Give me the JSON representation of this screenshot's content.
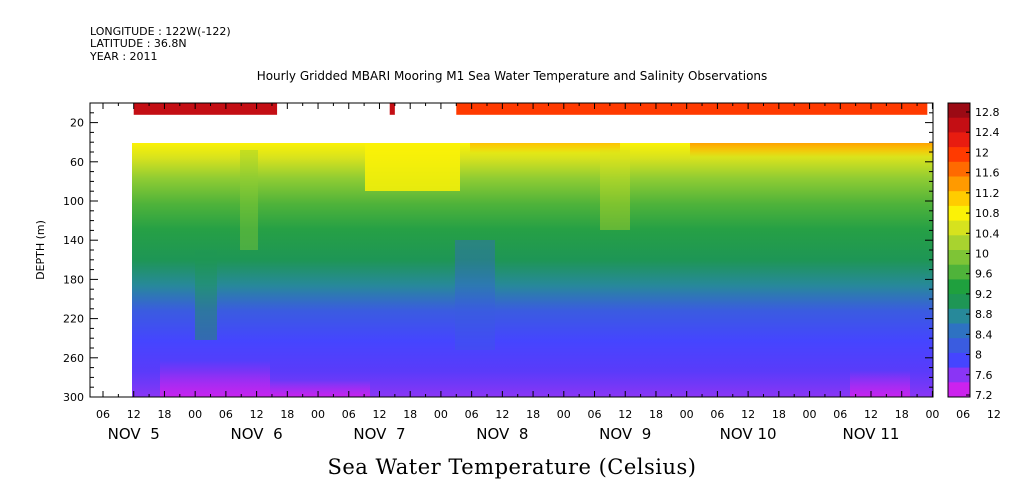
{
  "header": {
    "longitude": "LONGITUDE : 122W(-122)",
    "latitude": "LATITUDE : 36.8N",
    "year": "YEAR : 2011"
  },
  "chart_data": {
    "type": "heatmap",
    "title": "Hourly Gridded MBARI Mooring M1 Sea Water Temperature and Salinity Observations",
    "xlabel": "",
    "ylabel": "DEPTH (m)",
    "bottom_label": "Sea Water Temperature (Celsius)",
    "x_hour_ticks": [
      "06",
      "12",
      "18",
      "00",
      "06",
      "12",
      "18",
      "00",
      "06",
      "12",
      "18",
      "00",
      "06",
      "12",
      "18",
      "00",
      "06",
      "12",
      "18",
      "00",
      "06",
      "12",
      "18",
      "00",
      "06",
      "12",
      "18",
      "00",
      "06",
      "12",
      "18"
    ],
    "x_day_labels": [
      "NOV  5",
      "NOV  6",
      "NOV  7",
      "NOV  8",
      "NOV  9",
      "NOV 10",
      "NOV 11"
    ],
    "y_ticks": [
      "20",
      "60",
      "100",
      "140",
      "180",
      "220",
      "260",
      "300"
    ],
    "ylim": [
      300,
      0
    ],
    "colorbar": {
      "labels": [
        "7.2",
        "7.6",
        "8",
        "8.4",
        "8.8",
        "9.2",
        "9.6",
        "10",
        "10.4",
        "10.8",
        "11.2",
        "11.6",
        "12",
        "12.4",
        "12.8"
      ],
      "colors": [
        "#cc22ee",
        "#8a35f5",
        "#4545ff",
        "#3a5ce0",
        "#2e72c2",
        "#27899a",
        "#1e9655",
        "#1fa03e",
        "#4fb33a",
        "#7ec436",
        "#a8d32f",
        "#d6e21e",
        "#fbf206",
        "#ffcc00",
        "#ff9a00",
        "#ff6a00",
        "#ff3a00",
        "#e81c10",
        "#c40e14",
        "#9b0a14"
      ]
    },
    "surface_band": {
      "depth_range": [
        0,
        10
      ],
      "segments": [
        {
          "start": "NOV 5 12",
          "end": "NOV 6 16",
          "value": 12.8
        },
        {
          "start": "NOV 7 14",
          "end": "NOV 7 15",
          "value": 12.8
        },
        {
          "start": "NOV 8 03",
          "end": "NOV 11 23",
          "value": 12.2
        }
      ]
    },
    "profile_depths": [
      40,
      80,
      120,
      160,
      200,
      240,
      280,
      300
    ],
    "profiles": [
      {
        "time": "NOV 5 12",
        "temps": [
          11.0,
          10.2,
          9.8,
          9.4,
          9.0,
          8.4,
          7.9,
          7.5
        ]
      },
      {
        "time": "NOV 6 12",
        "temps": [
          10.9,
          10.1,
          9.7,
          9.3,
          8.9,
          8.3,
          7.8,
          7.4
        ]
      },
      {
        "time": "NOV 7 06",
        "temps": [
          10.9,
          10.1,
          9.8,
          9.4,
          9.0,
          8.5,
          7.8,
          7.3
        ]
      },
      {
        "time": "NOV 7 12",
        "temps": [
          11.3,
          10.5,
          10.0,
          9.5,
          8.9,
          8.3,
          7.9,
          7.6
        ]
      },
      {
        "time": "NOV 8 12",
        "temps": [
          11.2,
          10.3,
          9.8,
          9.3,
          8.6,
          8.2,
          7.9,
          7.6
        ]
      },
      {
        "time": "NOV 9 12",
        "temps": [
          11.2,
          10.2,
          9.7,
          9.1,
          8.6,
          8.2,
          7.9,
          7.6
        ]
      },
      {
        "time": "NOV 10 12",
        "temps": [
          11.4,
          10.2,
          9.6,
          9.1,
          8.6,
          8.3,
          8.0,
          7.7
        ]
      },
      {
        "time": "NOV 11 12",
        "temps": [
          11.6,
          10.3,
          9.6,
          9.1,
          8.6,
          8.3,
          8.0,
          7.6
        ]
      }
    ],
    "grid": false,
    "legend_placement": "right"
  }
}
